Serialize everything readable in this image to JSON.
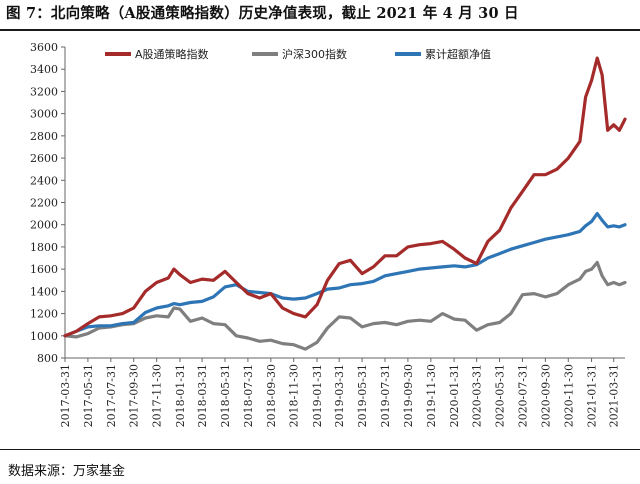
{
  "title": "图 7：北向策略（A股通策略指数）历史净值表现，截止 2021 年 4 月 30 日",
  "source": "数据来源：万家基金",
  "chart_data": {
    "type": "line",
    "title": "",
    "xlabel": "",
    "ylabel": "",
    "ylim": [
      800,
      3600
    ],
    "yticks": [
      800,
      1000,
      1200,
      1400,
      1600,
      1800,
      2000,
      2200,
      2400,
      2600,
      2800,
      3000,
      3200,
      3400,
      3600
    ],
    "xticks": [
      "2017-03-31",
      "2017-05-31",
      "2017-07-31",
      "2017-09-30",
      "2017-11-30",
      "2018-01-31",
      "2018-03-31",
      "2018-05-31",
      "2018-07-31",
      "2018-09-30",
      "2018-11-30",
      "2019-01-31",
      "2019-03-31",
      "2019-05-31",
      "2019-07-31",
      "2019-09-30",
      "2019-11-30",
      "2020-01-31",
      "2020-03-31",
      "2020-05-31",
      "2020-07-31",
      "2020-09-30",
      "2020-11-30",
      "2021-01-31",
      "2021-03-31"
    ],
    "grid": false,
    "legend": "top",
    "series": [
      {
        "name": "A股通策略指数",
        "color": "#A52A2A",
        "points": [
          [
            "2017-03-31",
            1000
          ],
          [
            "2017-04-30",
            1040
          ],
          [
            "2017-05-31",
            1110
          ],
          [
            "2017-06-30",
            1170
          ],
          [
            "2017-07-31",
            1180
          ],
          [
            "2017-08-31",
            1200
          ],
          [
            "2017-09-30",
            1250
          ],
          [
            "2017-10-31",
            1400
          ],
          [
            "2017-11-30",
            1480
          ],
          [
            "2017-12-31",
            1520
          ],
          [
            "2018-01-15",
            1600
          ],
          [
            "2018-01-31",
            1550
          ],
          [
            "2018-02-28",
            1480
          ],
          [
            "2018-03-31",
            1510
          ],
          [
            "2018-04-30",
            1500
          ],
          [
            "2018-05-31",
            1580
          ],
          [
            "2018-06-30",
            1480
          ],
          [
            "2018-07-31",
            1380
          ],
          [
            "2018-08-31",
            1340
          ],
          [
            "2018-09-30",
            1380
          ],
          [
            "2018-10-31",
            1250
          ],
          [
            "2018-11-30",
            1200
          ],
          [
            "2018-12-31",
            1170
          ],
          [
            "2019-01-31",
            1280
          ],
          [
            "2019-02-28",
            1500
          ],
          [
            "2019-03-31",
            1650
          ],
          [
            "2019-04-30",
            1680
          ],
          [
            "2019-05-31",
            1560
          ],
          [
            "2019-06-30",
            1620
          ],
          [
            "2019-07-31",
            1720
          ],
          [
            "2019-08-31",
            1720
          ],
          [
            "2019-09-30",
            1800
          ],
          [
            "2019-10-31",
            1820
          ],
          [
            "2019-11-30",
            1830
          ],
          [
            "2019-12-31",
            1850
          ],
          [
            "2020-01-31",
            1780
          ],
          [
            "2020-02-29",
            1700
          ],
          [
            "2020-03-31",
            1650
          ],
          [
            "2020-04-30",
            1850
          ],
          [
            "2020-05-31",
            1950
          ],
          [
            "2020-06-30",
            2150
          ],
          [
            "2020-07-31",
            2300
          ],
          [
            "2020-08-31",
            2450
          ],
          [
            "2020-09-30",
            2450
          ],
          [
            "2020-10-31",
            2500
          ],
          [
            "2020-11-30",
            2600
          ],
          [
            "2020-12-31",
            2750
          ],
          [
            "2021-01-15",
            3150
          ],
          [
            "2021-01-31",
            3300
          ],
          [
            "2021-02-15",
            3500
          ],
          [
            "2021-02-28",
            3350
          ],
          [
            "2021-03-15",
            2850
          ],
          [
            "2021-03-31",
            2900
          ],
          [
            "2021-04-15",
            2850
          ],
          [
            "2021-04-30",
            2950
          ]
        ]
      },
      {
        "name": "沪深300指数",
        "color": "#7F7F7F",
        "points": [
          [
            "2017-03-31",
            1000
          ],
          [
            "2017-04-30",
            990
          ],
          [
            "2017-05-31",
            1020
          ],
          [
            "2017-06-30",
            1070
          ],
          [
            "2017-07-31",
            1080
          ],
          [
            "2017-08-31",
            1100
          ],
          [
            "2017-09-30",
            1110
          ],
          [
            "2017-10-31",
            1160
          ],
          [
            "2017-11-30",
            1180
          ],
          [
            "2017-12-31",
            1170
          ],
          [
            "2018-01-15",
            1250
          ],
          [
            "2018-01-31",
            1240
          ],
          [
            "2018-02-28",
            1130
          ],
          [
            "2018-03-31",
            1160
          ],
          [
            "2018-04-30",
            1110
          ],
          [
            "2018-05-31",
            1100
          ],
          [
            "2018-06-30",
            1000
          ],
          [
            "2018-07-31",
            980
          ],
          [
            "2018-08-31",
            950
          ],
          [
            "2018-09-30",
            960
          ],
          [
            "2018-10-31",
            930
          ],
          [
            "2018-11-30",
            920
          ],
          [
            "2018-12-31",
            880
          ],
          [
            "2019-01-31",
            940
          ],
          [
            "2019-02-28",
            1070
          ],
          [
            "2019-03-31",
            1170
          ],
          [
            "2019-04-30",
            1160
          ],
          [
            "2019-05-31",
            1080
          ],
          [
            "2019-06-30",
            1110
          ],
          [
            "2019-07-31",
            1120
          ],
          [
            "2019-08-31",
            1100
          ],
          [
            "2019-09-30",
            1130
          ],
          [
            "2019-10-31",
            1140
          ],
          [
            "2019-11-30",
            1130
          ],
          [
            "2019-12-31",
            1200
          ],
          [
            "2020-01-31",
            1150
          ],
          [
            "2020-02-29",
            1140
          ],
          [
            "2020-03-31",
            1050
          ],
          [
            "2020-04-30",
            1100
          ],
          [
            "2020-05-31",
            1120
          ],
          [
            "2020-06-30",
            1200
          ],
          [
            "2020-07-31",
            1370
          ],
          [
            "2020-08-31",
            1380
          ],
          [
            "2020-09-30",
            1350
          ],
          [
            "2020-10-31",
            1380
          ],
          [
            "2020-11-30",
            1460
          ],
          [
            "2020-12-31",
            1510
          ],
          [
            "2021-01-15",
            1580
          ],
          [
            "2021-01-31",
            1600
          ],
          [
            "2021-02-15",
            1660
          ],
          [
            "2021-02-28",
            1540
          ],
          [
            "2021-03-15",
            1460
          ],
          [
            "2021-03-31",
            1480
          ],
          [
            "2021-04-15",
            1460
          ],
          [
            "2021-04-30",
            1480
          ]
        ]
      },
      {
        "name": "累计超额净值",
        "color": "#2E75B6",
        "points": [
          [
            "2017-03-31",
            1000
          ],
          [
            "2017-04-30",
            1040
          ],
          [
            "2017-05-31",
            1080
          ],
          [
            "2017-06-30",
            1090
          ],
          [
            "2017-07-31",
            1090
          ],
          [
            "2017-08-31",
            1110
          ],
          [
            "2017-09-30",
            1120
          ],
          [
            "2017-10-31",
            1210
          ],
          [
            "2017-11-30",
            1250
          ],
          [
            "2017-12-31",
            1270
          ],
          [
            "2018-01-15",
            1290
          ],
          [
            "2018-01-31",
            1280
          ],
          [
            "2018-02-28",
            1300
          ],
          [
            "2018-03-31",
            1310
          ],
          [
            "2018-04-30",
            1350
          ],
          [
            "2018-05-31",
            1440
          ],
          [
            "2018-06-30",
            1460
          ],
          [
            "2018-07-31",
            1400
          ],
          [
            "2018-08-31",
            1390
          ],
          [
            "2018-09-30",
            1380
          ],
          [
            "2018-10-31",
            1340
          ],
          [
            "2018-11-30",
            1330
          ],
          [
            "2018-12-31",
            1340
          ],
          [
            "2019-01-31",
            1380
          ],
          [
            "2019-02-28",
            1420
          ],
          [
            "2019-03-31",
            1430
          ],
          [
            "2019-04-30",
            1460
          ],
          [
            "2019-05-31",
            1470
          ],
          [
            "2019-06-30",
            1490
          ],
          [
            "2019-07-31",
            1540
          ],
          [
            "2019-08-31",
            1560
          ],
          [
            "2019-09-30",
            1580
          ],
          [
            "2019-10-31",
            1600
          ],
          [
            "2019-11-30",
            1610
          ],
          [
            "2019-12-31",
            1620
          ],
          [
            "2020-01-31",
            1630
          ],
          [
            "2020-02-29",
            1620
          ],
          [
            "2020-03-31",
            1640
          ],
          [
            "2020-04-30",
            1700
          ],
          [
            "2020-05-31",
            1740
          ],
          [
            "2020-06-30",
            1780
          ],
          [
            "2020-07-31",
            1810
          ],
          [
            "2020-08-31",
            1840
          ],
          [
            "2020-09-30",
            1870
          ],
          [
            "2020-10-31",
            1890
          ],
          [
            "2020-11-30",
            1910
          ],
          [
            "2020-12-31",
            1940
          ],
          [
            "2021-01-15",
            1990
          ],
          [
            "2021-01-31",
            2030
          ],
          [
            "2021-02-15",
            2100
          ],
          [
            "2021-02-28",
            2040
          ],
          [
            "2021-03-15",
            1980
          ],
          [
            "2021-03-31",
            1990
          ],
          [
            "2021-04-15",
            1980
          ],
          [
            "2021-04-30",
            2000
          ]
        ]
      }
    ]
  }
}
